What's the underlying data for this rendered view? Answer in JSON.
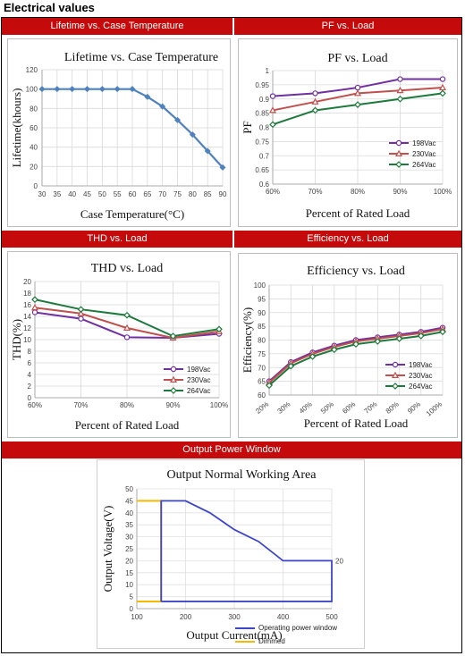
{
  "page": {
    "title": "Electrical values"
  },
  "headers": {
    "lifetime": "Lifetime vs. Case Temperature",
    "pf": "PF vs. Load",
    "thd": "THD vs. Load",
    "efficiency": "Efficiency vs. Load",
    "opw": "Output Power Window"
  },
  "colors": {
    "header_red": "#c40a0a",
    "series_198": "#7030a0",
    "series_230": "#c0504d",
    "series_264": "#1e7a3c",
    "lifetime_line": "#4f81bd",
    "window_blue": "#3c46c8",
    "dimmed_yellow": "#f5b800"
  },
  "chart_data": [
    {
      "id": "lifetime",
      "type": "line",
      "title": "Lifetime vs. Case Temperature",
      "xlabel": "Case Temperature(°C)",
      "ylabel": "Lifetime(khours)",
      "x": [
        30,
        35,
        40,
        45,
        50,
        55,
        60,
        65,
        70,
        75,
        80,
        85,
        90
      ],
      "series": [
        {
          "values": [
            100,
            100,
            100,
            100,
            100,
            100,
            100,
            92,
            82,
            68,
            53,
            36,
            19
          ]
        }
      ],
      "xlim": [
        30,
        90
      ],
      "ylim": [
        0,
        120
      ],
      "xticks": [
        30,
        35,
        40,
        45,
        50,
        55,
        60,
        65,
        70,
        75,
        80,
        85,
        90
      ],
      "yticks": [
        0,
        20,
        40,
        60,
        80,
        100,
        120
      ],
      "grid": true
    },
    {
      "id": "pf",
      "type": "line",
      "title": "PF vs. Load",
      "xlabel": "Percent of Rated Load",
      "ylabel": "PF",
      "categories": [
        "60%",
        "70%",
        "80%",
        "90%",
        "100%"
      ],
      "series": [
        {
          "name": "198Vac",
          "values": [
            0.91,
            0.92,
            0.94,
            0.97,
            0.97
          ]
        },
        {
          "name": "230Vac",
          "values": [
            0.86,
            0.89,
            0.92,
            0.93,
            0.94
          ]
        },
        {
          "name": "264Vac",
          "values": [
            0.81,
            0.86,
            0.88,
            0.9,
            0.92
          ]
        }
      ],
      "ylim": [
        0.6,
        1
      ],
      "yticks": [
        "0.6",
        "0.65",
        "0.7",
        "0.75",
        "0.8",
        "0.85",
        "0.9",
        "0.95",
        "1"
      ],
      "legend": "right",
      "grid": true
    },
    {
      "id": "thd",
      "type": "line",
      "title": "THD vs. Load",
      "xlabel": "Percent of Rated Load",
      "ylabel": "THD(%)",
      "categories": [
        "60%",
        "70%",
        "80%",
        "90%",
        "100%"
      ],
      "series": [
        {
          "name": "198Vac",
          "values": [
            14.7,
            13.6,
            10.4,
            10.3,
            11.0
          ]
        },
        {
          "name": "230Vac",
          "values": [
            15.5,
            14.5,
            12.0,
            10.3,
            11.4
          ]
        },
        {
          "name": "264Vac",
          "values": [
            16.9,
            15.2,
            14.2,
            10.6,
            11.8
          ]
        }
      ],
      "ylim": [
        0,
        20
      ],
      "yticks": [
        0,
        2,
        4,
        6,
        8,
        10,
        12,
        14,
        16,
        18,
        20
      ],
      "legend": "right",
      "grid": true
    },
    {
      "id": "efficiency",
      "type": "line",
      "title": "Efficiency vs. Load",
      "xlabel": "Percent of Rated Load",
      "ylabel": "Efficiency(%)",
      "categories": [
        "20%",
        "30%",
        "40%",
        "50%",
        "60%",
        "70%",
        "80%",
        "90%",
        "100%"
      ],
      "series": [
        {
          "name": "198Vac",
          "values": [
            65,
            72,
            75.5,
            78,
            80,
            81,
            82,
            83,
            84.5
          ]
        },
        {
          "name": "230Vac",
          "values": [
            64.5,
            71.5,
            75,
            77.5,
            79.5,
            80.5,
            81.5,
            82.5,
            84
          ]
        },
        {
          "name": "264Vac",
          "values": [
            63.5,
            70.5,
            74,
            76.5,
            78.5,
            79.5,
            80.5,
            81.5,
            83
          ]
        }
      ],
      "ylim": [
        60,
        100
      ],
      "yticks": [
        60,
        65,
        70,
        75,
        80,
        85,
        90,
        95,
        100
      ],
      "legend": "right",
      "grid": true
    },
    {
      "id": "opw",
      "type": "line",
      "title": "Output Normal Working Area",
      "xlabel": "Output Current(mA)",
      "ylabel": "Output Voltage(V)",
      "xlim": [
        100,
        500
      ],
      "ylim": [
        0,
        50
      ],
      "xticks": [
        100,
        200,
        300,
        400,
        500
      ],
      "yticks": [
        0,
        5,
        10,
        15,
        20,
        25,
        30,
        35,
        40,
        45,
        50
      ],
      "series": [
        {
          "name": "Operating power window",
          "x": [
            150,
            150,
            200,
            250,
            300,
            350,
            400,
            500,
            500,
            150
          ],
          "y": [
            3,
            45,
            45,
            40,
            33,
            28,
            20,
            20,
            3,
            3
          ]
        },
        {
          "name": "Dimmed",
          "x": [
            100,
            150,
            150,
            100
          ],
          "y": [
            45,
            45,
            3,
            3
          ]
        }
      ],
      "annotations": [
        "20"
      ],
      "legend": "bottom-right",
      "grid": true
    }
  ]
}
